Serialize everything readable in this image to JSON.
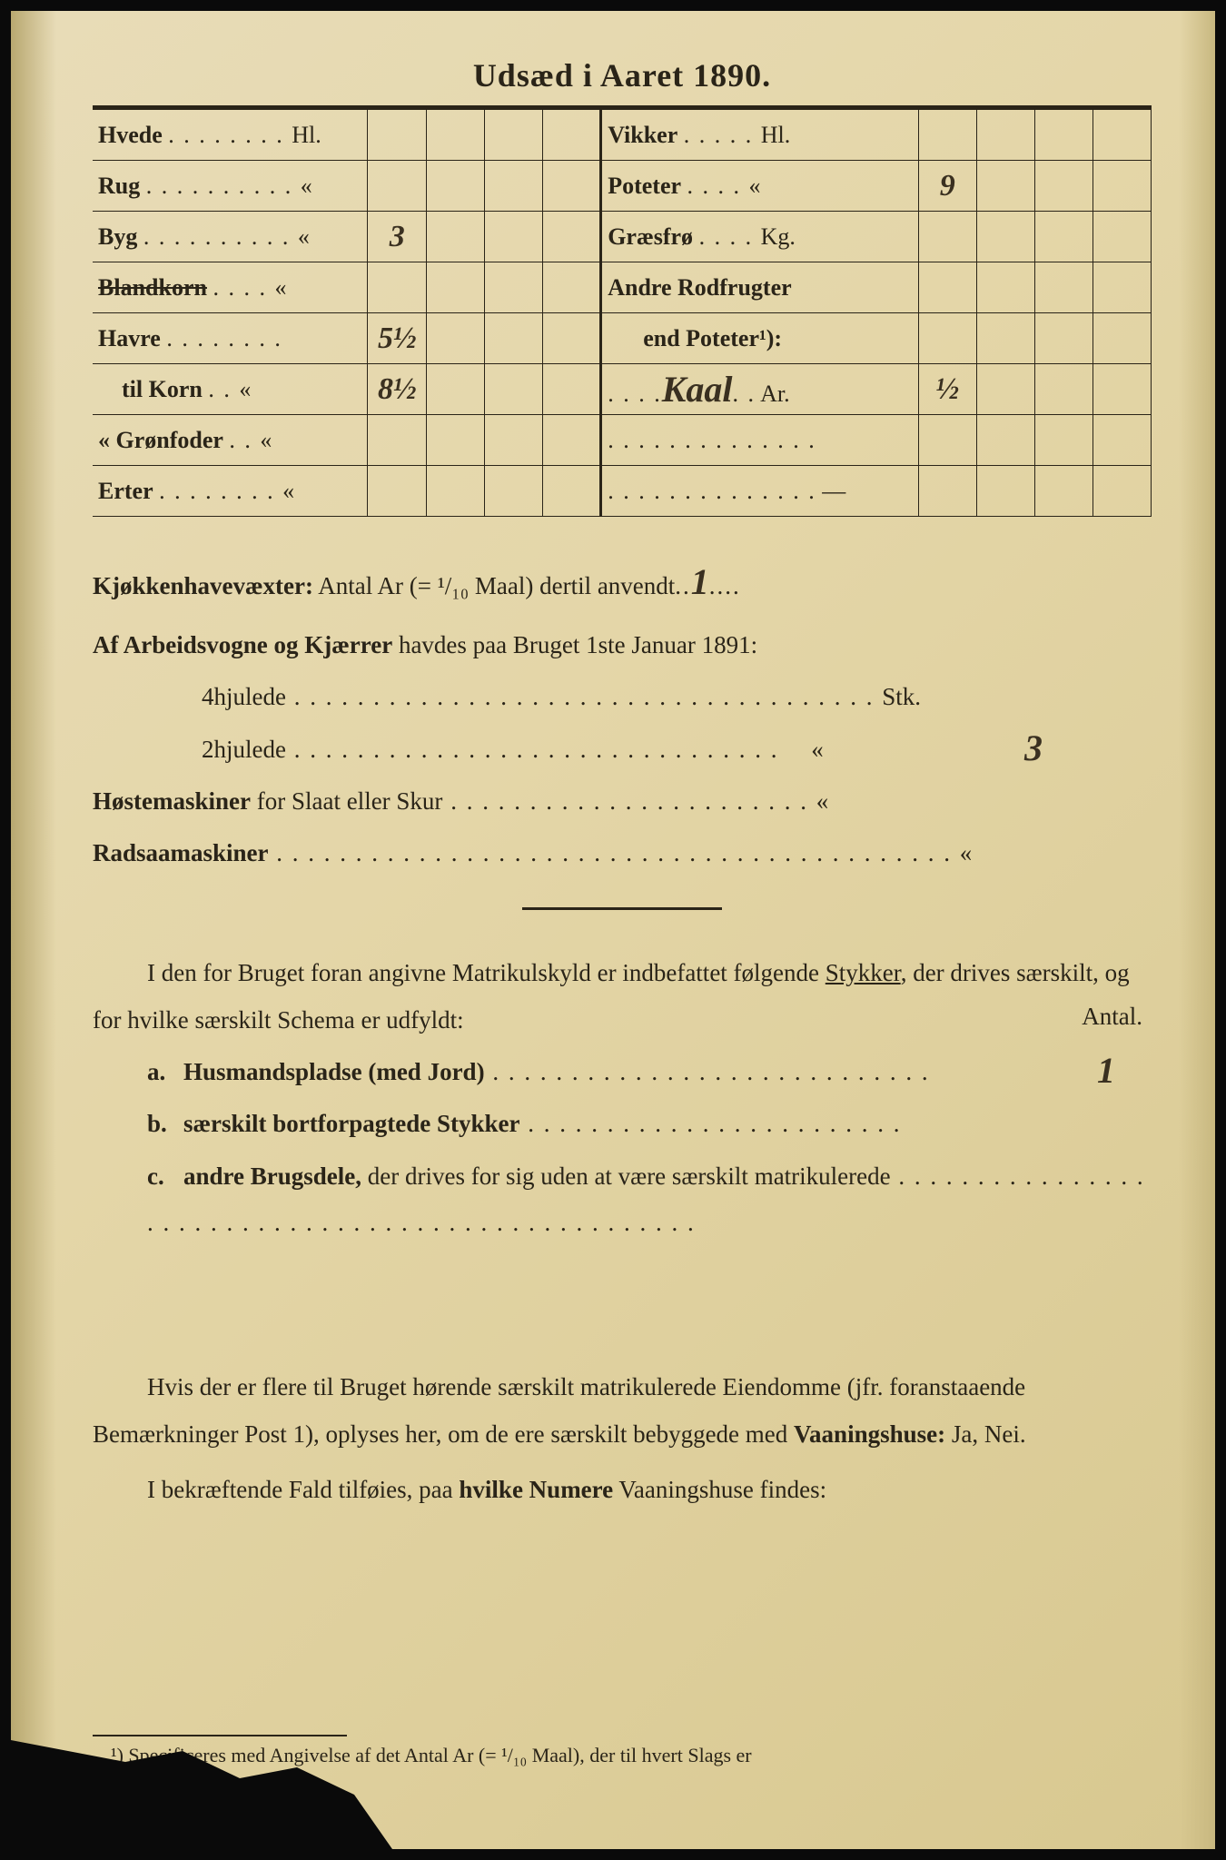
{
  "title": "Udsæd i Aaret 1890.",
  "table": {
    "left": [
      {
        "label": "Hvede",
        "unit": "Hl.",
        "value": ""
      },
      {
        "label": "Rug",
        "unit": "«",
        "value": ""
      },
      {
        "label": "Byg",
        "unit": "«",
        "value": "3"
      },
      {
        "label": "Blandkorn",
        "unit": "«",
        "value": "",
        "struck": true
      },
      {
        "label": "Havre",
        "unit": "",
        "value": "5½"
      },
      {
        "label": "til Korn",
        "unit": "«",
        "value": "8½",
        "indent": true
      },
      {
        "label": "« Grønfoder",
        "unit": "«",
        "value": ""
      },
      {
        "label": "Erter",
        "unit": "«",
        "value": ""
      }
    ],
    "right": [
      {
        "label": "Vikker",
        "unit": "Hl.",
        "value": ""
      },
      {
        "label": "Poteter",
        "unit": "«",
        "value": "9"
      },
      {
        "label": "Græsfrø",
        "unit": "Kg.",
        "value": ""
      },
      {
        "label": "Andre Rodfrugter",
        "unit": "",
        "value": ""
      },
      {
        "label": "end Poteter¹):",
        "unit": "",
        "value": "",
        "sub": true
      },
      {
        "label_hw": "Kaal",
        "unit": "Ar.",
        "value": "½"
      },
      {
        "label": "",
        "unit": "",
        "value": ""
      },
      {
        "label": "",
        "unit": "—",
        "value": ""
      }
    ]
  },
  "section1": {
    "line1_label": "Kjøkkenhavevæxter:",
    "line1_text": " Antal Ar (= ¹/₁₀ Maal) dertil anvendt",
    "line1_value": "1",
    "line2": "Af Arbeidsvogne og Kjærrer havdes paa Bruget 1ste Januar 1891:",
    "line3_label": "4hjulede",
    "line3_unit": "Stk.",
    "line3_value": "",
    "line4_label": "2hjulede",
    "line4_unit": "«",
    "line4_value": "3",
    "line5_label": "Høstemaskiner",
    "line5_text": " for Slaat eller Skur",
    "line5_unit": "«",
    "line6_label": "Radsaamaskiner",
    "line6_unit": "«"
  },
  "section2": {
    "para": "I den for Bruget foran angivne Matrikulskyld er indbefattet følgende Stykker, der drives særskilt, og for hvilke særskilt Schema er udfyldt:",
    "antal": "Antal.",
    "a_label": "Husmandspladse (med Jord)",
    "a_value": "1",
    "b_label": "særskilt bortforpagtede Stykker",
    "c_label": "andre Brugsdele,",
    "c_text": " der drives for sig uden at være særskilt matrikulerede"
  },
  "section3": {
    "para1": "Hvis der er flere til Bruget hørende særskilt matrikulerede Eiendomme (jfr. foranstaaende Bemærkninger Post 1), oplyses her, om de ere særskilt bebyggede med ",
    "vaaningshuse": "Vaaningshuse:",
    "janei": " Ja, Nei.",
    "para2": "I bekræftende Fald tilføies, paa ",
    "hvilke": "hvilke Numere",
    "para2b": " Vaaningshuse findes:"
  },
  "footnote": "¹) Specificeres med Angivelse af det Antal Ar (= ¹/₁₀ Maal), der til hvert Slags er"
}
